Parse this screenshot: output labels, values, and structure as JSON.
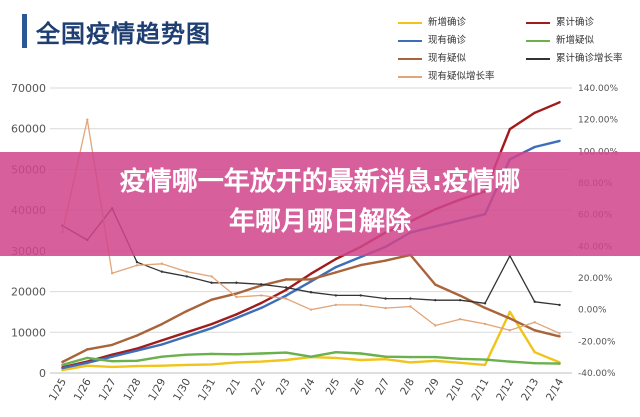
{
  "chart_data": {
    "type": "line",
    "title": "全国疫情趋势图",
    "categories": [
      "1/25",
      "1/26",
      "1/27",
      "1/28",
      "1/29",
      "1/30",
      "1/31",
      "2/1",
      "2/2",
      "2/3",
      "2/4",
      "2/5",
      "2/6",
      "2/7",
      "2/8",
      "2/9",
      "2/10",
      "2/11",
      "2/12",
      "2/13",
      "2/14"
    ],
    "y_left": {
      "ticks": [
        "0",
        "10000",
        "20000",
        "30000",
        "40000",
        "50000",
        "60000",
        "70000"
      ],
      "range": [
        0,
        70000
      ]
    },
    "y_right": {
      "ticks": [
        "-40.00%",
        "-20.00%",
        "0.00%",
        "20.00%",
        "40.00%",
        "60.00%",
        "80.00%",
        "100.00%",
        "120.00%",
        "140.00%"
      ],
      "range": [
        -40,
        140
      ]
    },
    "grid": true,
    "legend_position": "top-right",
    "series": [
      {
        "name": "新增确诊",
        "axis": "left",
        "color": "#f0c419",
        "values": [
          700,
          1800,
          1500,
          1700,
          1800,
          2000,
          2100,
          2600,
          2800,
          3200,
          3900,
          3700,
          3200,
          3400,
          2600,
          3000,
          2500,
          2000,
          15000,
          5100,
          2600
        ]
      },
      {
        "name": "累计确诊",
        "axis": "left",
        "color": "#a01c1c",
        "values": [
          1400,
          2800,
          4500,
          6000,
          8000,
          10000,
          12000,
          14400,
          17200,
          20400,
          24400,
          28000,
          31000,
          34500,
          37200,
          40200,
          42600,
          44600,
          59900,
          63900,
          66500
        ]
      },
      {
        "name": "现有确诊",
        "axis": "left",
        "color": "#3d6fb8",
        "values": [
          1200,
          2500,
          4000,
          5500,
          7000,
          9000,
          11000,
          13500,
          16000,
          19000,
          22500,
          26000,
          28500,
          31000,
          34500,
          36000,
          37500,
          39000,
          52500,
          55500,
          57000
        ]
      },
      {
        "name": "新增疑似",
        "axis": "left",
        "color": "#6ab04c",
        "values": [
          2000,
          3700,
          2900,
          3000,
          4000,
          4500,
          4700,
          4600,
          4800,
          5000,
          4000,
          5100,
          4800,
          4000,
          3900,
          3900,
          3500,
          3300,
          2800,
          2400,
          2300
        ]
      },
      {
        "name": "现有疑似",
        "axis": "left",
        "color": "#a8653c",
        "values": [
          2700,
          5800,
          6900,
          9200,
          12000,
          15200,
          18000,
          19500,
          21500,
          23000,
          23000,
          24700,
          26500,
          27600,
          29000,
          21700,
          19000,
          16000,
          13400,
          10500,
          9000
        ]
      },
      {
        "name": "累计确诊增长率",
        "axis": "right",
        "color": "#333333",
        "values": [
          53,
          44,
          64,
          30,
          24,
          21,
          17,
          17,
          16,
          14,
          11,
          9,
          9,
          7,
          7,
          6,
          6,
          4,
          34,
          5,
          3
        ]
      },
      {
        "name": "现有疑似增长率",
        "axis": "right",
        "color": "#e2a577",
        "values": [
          49,
          120,
          23,
          28,
          29,
          24,
          21,
          8,
          9,
          7,
          0,
          3,
          3,
          1,
          2,
          -10,
          -6,
          -9,
          -13,
          -8,
          -15
        ]
      }
    ]
  },
  "banner": {
    "line1": "疫情哪一年放开的最新消息:疫情哪",
    "line2": "年哪月哪日解除"
  }
}
